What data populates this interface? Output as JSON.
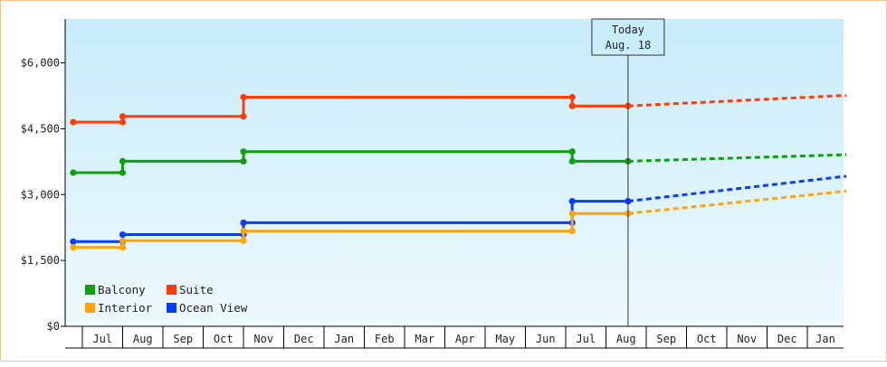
{
  "chart_data": {
    "type": "line",
    "title": "",
    "xlabel": "",
    "ylabel": "",
    "ylim": [
      0,
      7000
    ],
    "y_ticks": [
      0,
      1500,
      3000,
      4500,
      6000
    ],
    "y_tick_labels": [
      "$0",
      "$1,500",
      "$3,000",
      "$4,500",
      "$6,000"
    ],
    "x_tick_labels": [
      "Jul",
      "Aug",
      "Sep",
      "Oct",
      "Nov",
      "Dec",
      "Jan",
      "Feb",
      "Mar",
      "Apr",
      "May",
      "Jun",
      "Jul",
      "Aug",
      "Sep",
      "Oct",
      "Nov",
      "Dec",
      "Jan"
    ],
    "grid": false,
    "legend_position": "bottom-left",
    "today_marker": {
      "line1": "Today",
      "line2": "Aug. 18",
      "date": "2024-08-18"
    },
    "series": [
      {
        "name": "Suite",
        "color": "#ff3c0a",
        "points": [
          [
            "2023-06-15",
            4650
          ],
          [
            "2023-08-01",
            4650
          ],
          [
            "2023-08-01",
            4780
          ],
          [
            "2023-11-01",
            4780
          ],
          [
            "2023-11-01",
            5220
          ],
          [
            "2024-07-06",
            5220
          ],
          [
            "2024-07-06",
            5020
          ],
          [
            "2024-08-18",
            5020
          ]
        ],
        "forecast": [
          [
            "2024-08-18",
            5020
          ],
          [
            "2025-01-31",
            5260
          ]
        ]
      },
      {
        "name": "Balcony",
        "color": "#0ea00e",
        "points": [
          [
            "2023-06-15",
            3500
          ],
          [
            "2023-08-01",
            3500
          ],
          [
            "2023-08-01",
            3760
          ],
          [
            "2023-11-01",
            3760
          ],
          [
            "2023-11-01",
            3980
          ],
          [
            "2024-07-06",
            3980
          ],
          [
            "2024-07-06",
            3760
          ],
          [
            "2024-08-18",
            3760
          ]
        ],
        "forecast": [
          [
            "2024-08-18",
            3760
          ],
          [
            "2025-01-31",
            3910
          ]
        ]
      },
      {
        "name": "Ocean View",
        "color": "#0a3cff",
        "points": [
          [
            "2023-06-15",
            1930
          ],
          [
            "2023-08-01",
            1930
          ],
          [
            "2023-08-01",
            2090
          ],
          [
            "2023-11-01",
            2090
          ],
          [
            "2023-11-01",
            2360
          ],
          [
            "2024-07-06",
            2360
          ],
          [
            "2024-07-06",
            2850
          ],
          [
            "2024-08-18",
            2850
          ]
        ],
        "forecast": [
          [
            "2024-08-18",
            2850
          ],
          [
            "2025-01-31",
            3420
          ]
        ]
      },
      {
        "name": "Interior",
        "color": "#ffa50a",
        "points": [
          [
            "2023-06-15",
            1800
          ],
          [
            "2023-08-01",
            1800
          ],
          [
            "2023-08-01",
            1950
          ],
          [
            "2023-11-01",
            1950
          ],
          [
            "2023-11-01",
            2170
          ],
          [
            "2024-07-06",
            2170
          ],
          [
            "2024-07-06",
            2570
          ],
          [
            "2024-08-18",
            2570
          ]
        ],
        "forecast": [
          [
            "2024-08-18",
            2570
          ],
          [
            "2025-01-31",
            3080
          ]
        ]
      }
    ],
    "legend_order": [
      "Balcony",
      "Suite",
      "Interior",
      "Ocean View"
    ]
  }
}
